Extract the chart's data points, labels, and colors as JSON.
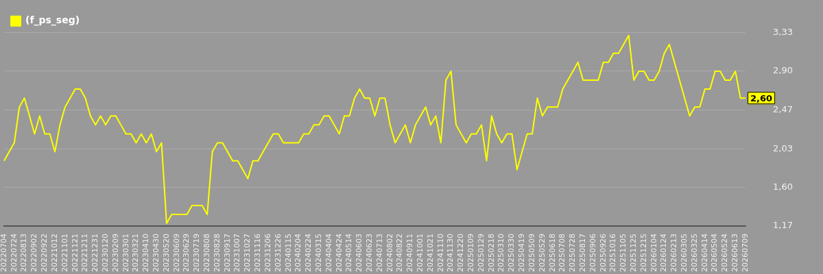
{
  "chart_data": {
    "type": "line",
    "legend": "top left",
    "grid": "y",
    "marker": "none",
    "categories": [
      "20220704",
      null,
      "20220724",
      null,
      "20220813",
      null,
      "20220902",
      null,
      "20220922",
      null,
      "20221012",
      null,
      "20221101",
      null,
      "20221121",
      null,
      "20221211",
      null,
      "20221231",
      null,
      "20230120",
      null,
      "20230209",
      null,
      "20230301",
      null,
      "20230321",
      null,
      "20230410",
      null,
      "20230430",
      null,
      "20230520",
      null,
      "20230609",
      null,
      "20230629",
      null,
      "20230719",
      null,
      "20230808",
      null,
      "20230828",
      null,
      "20230917",
      null,
      "20231007",
      null,
      "20231027",
      null,
      "20231116",
      null,
      "20231206",
      null,
      "20231226",
      null,
      "20240115",
      null,
      "20240204",
      null,
      "20240224",
      null,
      "20240315",
      null,
      "20240404",
      null,
      "20240424",
      null,
      "20240514",
      null,
      "20240603",
      null,
      "20240623",
      null,
      "20240713",
      null,
      "20240802",
      null,
      "20240822",
      null,
      "20240911",
      null,
      "20241001",
      null,
      "20241021",
      null,
      "20241110",
      null,
      "20241130",
      null,
      "20241220",
      null,
      "20250109",
      null,
      "20250129",
      null,
      "20250218",
      null,
      "20250310",
      null,
      "20250330",
      null,
      "20250419",
      null,
      "20250509",
      null,
      "20250529",
      null,
      "20250618",
      null,
      "20250708",
      null,
      "20250728",
      null,
      "20250817",
      null,
      "20250906",
      null,
      "20250926",
      null,
      "20251016",
      null,
      "20251105",
      null,
      "20251125",
      null,
      "20251215",
      null,
      "20260104",
      null,
      "20260124",
      null,
      "20260213",
      null,
      "20260305",
      null,
      "20260325",
      null,
      "20260414",
      null,
      "20260504",
      null,
      "20260524",
      null,
      "20260613",
      null,
      "20260709"
    ],
    "series": [
      {
        "name": "(f_ps_seg)",
        "color": "#ffff00",
        "values": [
          1.9,
          2.0,
          2.1,
          2.5,
          2.6,
          2.4,
          2.2,
          2.4,
          2.2,
          2.2,
          2.0,
          2.3,
          2.5,
          2.6,
          2.7,
          2.7,
          2.6,
          2.4,
          2.3,
          2.4,
          2.3,
          2.4,
          2.4,
          2.3,
          2.2,
          2.2,
          2.1,
          2.2,
          2.1,
          2.2,
          2.0,
          2.1,
          1.2,
          1.3,
          1.3,
          1.3,
          1.3,
          1.4,
          1.4,
          1.4,
          1.3,
          2.0,
          2.1,
          2.1,
          2.0,
          1.9,
          1.9,
          1.8,
          1.7,
          1.9,
          1.9,
          2.0,
          2.1,
          2.2,
          2.2,
          2.1,
          2.1,
          2.1,
          2.1,
          2.2,
          2.2,
          2.3,
          2.3,
          2.4,
          2.4,
          2.3,
          2.2,
          2.4,
          2.4,
          2.6,
          2.7,
          2.6,
          2.6,
          2.4,
          2.6,
          2.6,
          2.3,
          2.1,
          2.2,
          2.3,
          2.1,
          2.3,
          2.4,
          2.5,
          2.3,
          2.4,
          2.1,
          2.8,
          2.9,
          2.3,
          2.2,
          2.1,
          2.2,
          2.2,
          2.3,
          1.9,
          2.4,
          2.2,
          2.1,
          2.2,
          2.2,
          1.8,
          2.0,
          2.2,
          2.2,
          2.6,
          2.4,
          2.5,
          2.5,
          2.5,
          2.7,
          2.8,
          2.9,
          3.0,
          2.8,
          2.8,
          2.8,
          2.8,
          3.0,
          3.0,
          3.1,
          3.1,
          3.2,
          3.3,
          2.8,
          2.9,
          2.9,
          2.8,
          2.8,
          2.9,
          3.1,
          3.2,
          3.0,
          2.8,
          2.6,
          2.4,
          2.5,
          2.5,
          2.7,
          2.7,
          2.9,
          2.9,
          2.8,
          2.8,
          2.9,
          2.6,
          2.6
        ]
      }
    ],
    "ylim": [
      1.17,
      3.33
    ],
    "yticks": [
      {
        "value": 1.17,
        "label": "1,17"
      },
      {
        "value": 1.6,
        "label": "1,60"
      },
      {
        "value": 2.03,
        "label": "2,03"
      },
      {
        "value": 2.47,
        "label": "2,47"
      },
      {
        "value": 2.9,
        "label": "2,90"
      },
      {
        "value": 3.33,
        "label": "3,33"
      }
    ],
    "annotations": [
      {
        "text": "2,60",
        "x": "20260709",
        "y": 2.6
      }
    ]
  }
}
